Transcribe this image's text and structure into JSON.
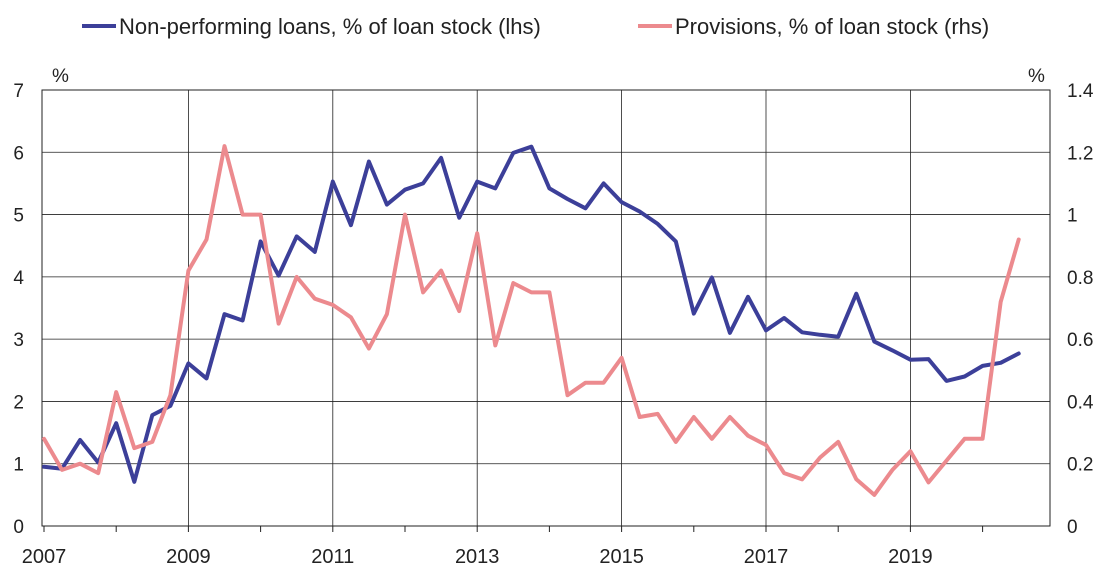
{
  "chart_data": {
    "type": "line",
    "x_start": "2007-Q1",
    "quarters_per_year": 4,
    "xtick_labels": [
      "2007",
      "2009",
      "2011",
      "2013",
      "2015",
      "2017",
      "2019"
    ],
    "y_left": {
      "unit": "%",
      "ylim": [
        0,
        7
      ],
      "ticks": [
        "0",
        "1",
        "2",
        "3",
        "4",
        "5",
        "6",
        "7"
      ]
    },
    "y_right": {
      "unit": "%",
      "ylim": [
        0,
        1.4
      ],
      "ticks": [
        "0",
        "0.2",
        "0.4",
        "0.6",
        "0.8",
        "1",
        "1.2",
        "1.4"
      ]
    },
    "grid": true,
    "legend_position": "top",
    "series": [
      {
        "name": "Non-performing loans, % of loan stock (lhs)",
        "axis": "left",
        "color": "#3c3f99",
        "values": [
          0.95,
          0.92,
          1.38,
          1.02,
          1.65,
          0.71,
          1.78,
          1.93,
          2.61,
          2.37,
          3.4,
          3.3,
          4.57,
          4.02,
          4.65,
          4.4,
          5.53,
          4.83,
          5.85,
          5.16,
          5.4,
          5.5,
          5.91,
          4.95,
          5.53,
          5.42,
          5.99,
          6.09,
          5.42,
          5.25,
          5.1,
          5.5,
          5.2,
          5.05,
          4.85,
          4.57,
          3.41,
          3.99,
          3.1,
          3.68,
          3.14,
          3.34,
          3.11,
          3.07,
          3.04,
          3.73,
          2.96,
          2.82,
          2.67,
          2.68,
          2.33,
          2.4,
          2.57,
          2.62,
          2.77
        ]
      },
      {
        "name": "Provisions, % of loan stock (rhs)",
        "axis": "right",
        "color": "#ec8a8e",
        "values": [
          0.28,
          0.18,
          0.2,
          0.17,
          0.43,
          0.25,
          0.27,
          0.42,
          0.82,
          0.92,
          1.22,
          1.0,
          1.0,
          0.65,
          0.8,
          0.73,
          0.71,
          0.67,
          0.57,
          0.68,
          1.0,
          0.75,
          0.82,
          0.69,
          0.94,
          0.58,
          0.78,
          0.75,
          0.75,
          0.42,
          0.46,
          0.46,
          0.54,
          0.35,
          0.36,
          0.27,
          0.35,
          0.28,
          0.35,
          0.29,
          0.26,
          0.17,
          0.15,
          0.22,
          0.27,
          0.15,
          0.1,
          0.18,
          0.24,
          0.14,
          0.21,
          0.28,
          0.28,
          0.72,
          0.92
        ]
      }
    ]
  }
}
